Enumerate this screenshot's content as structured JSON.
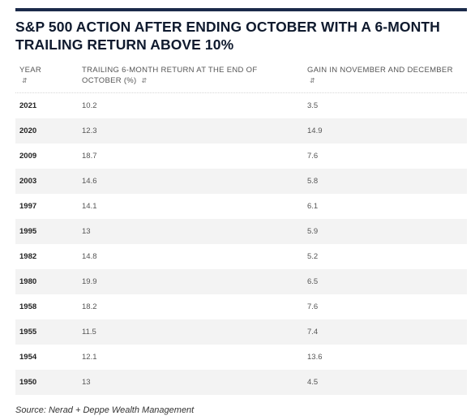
{
  "title": "S&P 500 ACTION AFTER ENDING OCTOBER WITH A 6-MONTH TRAILING RETURN ABOVE 10%",
  "columns": [
    {
      "label": "YEAR",
      "sort_icon": "sort-icon"
    },
    {
      "label": "TRAILING 6-MONTH RETURN AT THE END OF OCTOBER (%)",
      "sort_icon": "sort-icon"
    },
    {
      "label": "GAIN IN NOVEMBER AND DECEMBER",
      "sort_icon": "sort-icon"
    }
  ],
  "rows": [
    [
      "2021",
      "10.2",
      "3.5"
    ],
    [
      "2020",
      "12.3",
      "14.9"
    ],
    [
      "2009",
      "18.7",
      "7.6"
    ],
    [
      "2003",
      "14.6",
      "5.8"
    ],
    [
      "1997",
      "14.1",
      "6.1"
    ],
    [
      "1995",
      "13",
      "5.9"
    ],
    [
      "1982",
      "14.8",
      "5.2"
    ],
    [
      "1980",
      "19.9",
      "6.5"
    ],
    [
      "1958",
      "18.2",
      "7.6"
    ],
    [
      "1955",
      "11.5",
      "7.4"
    ],
    [
      "1954",
      "12.1",
      "13.6"
    ],
    [
      "1950",
      "13",
      "4.5"
    ]
  ],
  "source": "Source: Nerad + Deppe Wealth Management",
  "colors": {
    "accent": "#1b2a4a",
    "row_alt": "#f3f3f3"
  },
  "chart_data": {
    "type": "table",
    "title": "S&P 500 ACTION AFTER ENDING OCTOBER WITH A 6-MONTH TRAILING RETURN ABOVE 10%",
    "columns": [
      "YEAR",
      "TRAILING 6-MONTH RETURN AT THE END OF OCTOBER (%)",
      "GAIN IN NOVEMBER AND DECEMBER"
    ],
    "rows": [
      [
        "2021",
        10.2,
        3.5
      ],
      [
        "2020",
        12.3,
        14.9
      ],
      [
        "2009",
        18.7,
        7.6
      ],
      [
        "2003",
        14.6,
        5.8
      ],
      [
        "1997",
        14.1,
        6.1
      ],
      [
        "1995",
        13,
        5.9
      ],
      [
        "1982",
        14.8,
        5.2
      ],
      [
        "1980",
        19.9,
        6.5
      ],
      [
        "1958",
        18.2,
        7.6
      ],
      [
        "1955",
        11.5,
        7.4
      ],
      [
        "1954",
        12.1,
        13.6
      ],
      [
        "1950",
        13,
        4.5
      ]
    ]
  }
}
